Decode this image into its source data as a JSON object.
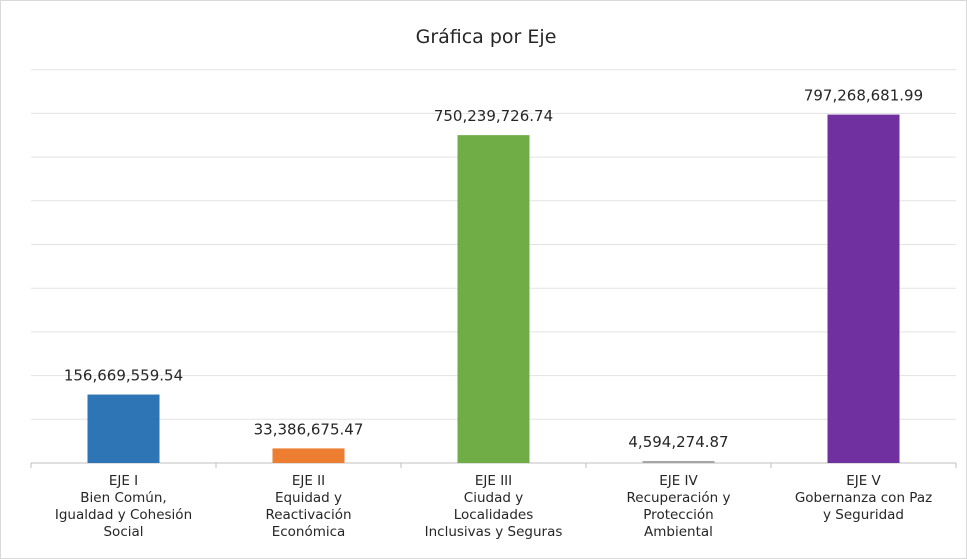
{
  "chart_data": {
    "type": "bar",
    "title": "Gráfica por Eje",
    "xlabel": "",
    "ylabel": "",
    "ylim": [
      0,
      900000000
    ],
    "grid": true,
    "legend": "none",
    "categories": [
      [
        "EJE I",
        "Bien Común,",
        "Igualdad y Cohesión",
        "Social"
      ],
      [
        "EJE II",
        "Equidad y",
        "Reactivación",
        "Económica"
      ],
      [
        "EJE III",
        "Ciudad y",
        "Localidades",
        "Inclusivas y Seguras"
      ],
      [
        "EJE IV",
        "Recuperación y",
        "Protección",
        "Ambiental"
      ],
      [
        "EJE V",
        "Gobernanza con Paz",
        "y Seguridad"
      ]
    ],
    "values": [
      156669559.54,
      33386675.47,
      750239726.74,
      4594274.87,
      797268681.99
    ],
    "data_labels": [
      "156,669,559.54",
      "33,386,675.47",
      "750,239,726.74",
      "4,594,274.87",
      "797,268,681.99"
    ],
    "colors": [
      "#2e75b6",
      "#ed7d31",
      "#70ad47",
      "#a5a5a5",
      "#7030a0"
    ]
  }
}
